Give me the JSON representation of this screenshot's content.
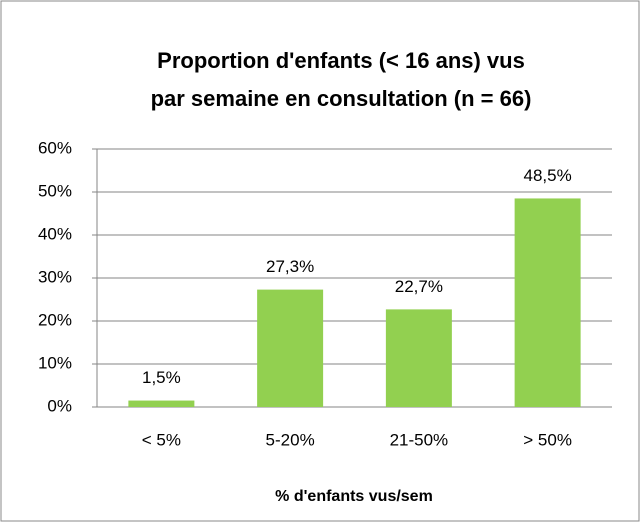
{
  "chart_data": {
    "type": "bar",
    "title": [
      "Proportion d'enfants (< 16 ans) vus",
      "par semaine en consultation (n = 66)"
    ],
    "x_label": "% d'enfants vus/sem",
    "categories": [
      "< 5%",
      "5-20%",
      "21-50%",
      "> 50%"
    ],
    "values": [
      1.5,
      27.3,
      22.7,
      48.5
    ],
    "value_labels": [
      "1,5%",
      "27,3%",
      "22,7%",
      "48,5%"
    ],
    "color": "#92d050",
    "ylim": [
      0,
      60
    ],
    "yticks": [
      {
        "value": 0,
        "label": "0%"
      },
      {
        "value": 10,
        "label": "10%"
      },
      {
        "value": 20,
        "label": "20%"
      },
      {
        "value": 30,
        "label": "30%"
      },
      {
        "value": 40,
        "label": "40%"
      },
      {
        "value": 50,
        "label": "50%"
      },
      {
        "value": 60,
        "label": "60%"
      }
    ],
    "grid": true
  }
}
